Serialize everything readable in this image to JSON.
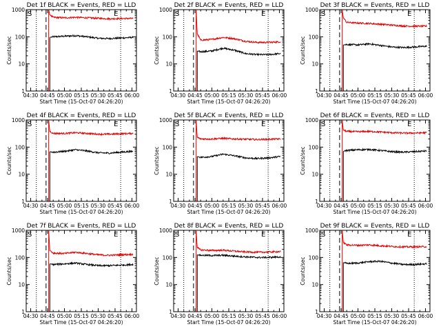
{
  "chart_data": [
    {
      "type": "line",
      "title": "Det 1f BLACK = Events, RED = LLD",
      "xlabel": "Start Time (15-Oct-07 04:26:20)",
      "ylabel": "Counts/sec",
      "yscale": "log",
      "ylim": [
        1,
        1000
      ],
      "xlim": [
        "04:26",
        "06:04"
      ],
      "x_ticks": [
        "04:30",
        "04:45",
        "05:00",
        "05:15",
        "05:30",
        "05:45",
        "06:00"
      ],
      "y_ticks": [
        "1",
        "10",
        "100",
        "1000"
      ],
      "markers": {
        "s": "S",
        "e": "E"
      },
      "series": [
        {
          "name": "BLACK = Events",
          "color": "#000000",
          "x": [
            "04:47",
            "04:50",
            "05:00",
            "05:10",
            "05:20",
            "05:30",
            "05:40",
            "05:50",
            "06:01"
          ],
          "y": [
            95,
            100,
            105,
            110,
            100,
            88,
            86,
            90,
            95
          ]
        },
        {
          "name": "RED = LLD",
          "color": "#e00000",
          "x": [
            "04:46",
            "04:47",
            "04:50",
            "05:00",
            "05:10",
            "05:20",
            "05:30",
            "05:40",
            "05:50",
            "06:01"
          ],
          "y": [
            1000,
            650,
            520,
            500,
            520,
            500,
            480,
            460,
            470,
            475
          ]
        }
      ]
    },
    {
      "type": "line",
      "title": "Det 2f BLACK = Events, RED = LLD",
      "xlabel": "Start Time (15-Oct-07 04:26:20)",
      "ylabel": "Counts/sec",
      "yscale": "log",
      "ylim": [
        1,
        1000
      ],
      "xlim": [
        "04:26",
        "06:04"
      ],
      "x_ticks": [
        "04:30",
        "04:45",
        "05:00",
        "05:15",
        "05:30",
        "05:45",
        "06:00"
      ],
      "y_ticks": [
        "1",
        "10",
        "100",
        "1000"
      ],
      "markers": {
        "s": "S",
        "e": "E"
      },
      "series": [
        {
          "name": "BLACK = Events",
          "color": "#000000",
          "x": [
            "04:47",
            "04:50",
            "05:00",
            "05:10",
            "05:20",
            "05:30",
            "05:40",
            "05:50",
            "06:01"
          ],
          "y": [
            30,
            28,
            30,
            38,
            32,
            24,
            22,
            22,
            24
          ]
        },
        {
          "name": "RED = LLD",
          "color": "#e00000",
          "x": [
            "04:46",
            "04:47",
            "04:50",
            "05:00",
            "05:10",
            "05:20",
            "05:30",
            "05:40",
            "05:50",
            "06:01"
          ],
          "y": [
            1000,
            130,
            75,
            80,
            95,
            85,
            68,
            62,
            62,
            65
          ]
        }
      ]
    },
    {
      "type": "line",
      "title": "Det 3f BLACK = Events, RED = LLD",
      "xlabel": "Start Time (15-Oct-07 04:26:20)",
      "ylabel": "Counts/sec",
      "yscale": "log",
      "ylim": [
        1,
        1000
      ],
      "xlim": [
        "04:26",
        "06:04"
      ],
      "x_ticks": [
        "04:30",
        "04:45",
        "05:00",
        "05:15",
        "05:30",
        "05:45",
        "06:00"
      ],
      "y_ticks": [
        "1",
        "10",
        "100",
        "1000"
      ],
      "markers": {
        "s": "S",
        "e": "E"
      },
      "series": [
        {
          "name": "BLACK = Events",
          "color": "#000000",
          "x": [
            "04:47",
            "04:50",
            "05:00",
            "05:10",
            "05:20",
            "05:30",
            "05:40",
            "05:50",
            "06:01"
          ],
          "y": [
            50,
            52,
            50,
            55,
            48,
            42,
            40,
            42,
            45
          ]
        },
        {
          "name": "RED = LLD",
          "color": "#e00000",
          "x": [
            "04:46",
            "04:47",
            "04:50",
            "05:00",
            "05:10",
            "05:20",
            "05:30",
            "05:40",
            "05:50",
            "06:01"
          ],
          "y": [
            1000,
            500,
            340,
            320,
            310,
            290,
            270,
            250,
            245,
            245
          ]
        }
      ]
    },
    {
      "type": "line",
      "title": "Det 4f BLACK = Events, RED = LLD",
      "xlabel": "Start Time (15-Oct-07 04:26:20)",
      "ylabel": "Counts/sec",
      "yscale": "log",
      "ylim": [
        1,
        1000
      ],
      "xlim": [
        "04:26",
        "06:04"
      ],
      "x_ticks": [
        "04:30",
        "04:45",
        "05:00",
        "05:15",
        "05:30",
        "05:45",
        "06:00"
      ],
      "y_ticks": [
        "1",
        "10",
        "100",
        "1000"
      ],
      "markers": {
        "s": "S",
        "e": "E"
      },
      "series": [
        {
          "name": "BLACK = Events",
          "color": "#000000",
          "x": [
            "04:47",
            "04:50",
            "05:00",
            "05:10",
            "05:20",
            "05:30",
            "05:40",
            "05:50",
            "06:01"
          ],
          "y": [
            68,
            65,
            70,
            80,
            72,
            62,
            60,
            65,
            70
          ]
        },
        {
          "name": "RED = LLD",
          "color": "#e00000",
          "x": [
            "04:46",
            "04:47",
            "04:50",
            "05:00",
            "05:10",
            "05:20",
            "05:30",
            "05:40",
            "05:50",
            "06:01"
          ],
          "y": [
            1000,
            380,
            320,
            320,
            340,
            320,
            300,
            300,
            310,
            320
          ]
        }
      ]
    },
    {
      "type": "line",
      "title": "Det 5f BLACK = Events, RED = LLD",
      "xlabel": "Start Time (15-Oct-07 04:26:20)",
      "ylabel": "Counts/sec",
      "yscale": "log",
      "ylim": [
        1,
        1000
      ],
      "xlim": [
        "04:26",
        "06:04"
      ],
      "x_ticks": [
        "04:30",
        "04:45",
        "05:00",
        "05:15",
        "05:30",
        "05:45",
        "06:00"
      ],
      "y_ticks": [
        "1",
        "10",
        "100",
        "1000"
      ],
      "markers": {
        "s": "S",
        "e": "E"
      },
      "series": [
        {
          "name": "BLACK = Events",
          "color": "#000000",
          "x": [
            "04:47",
            "04:50",
            "05:00",
            "05:10",
            "05:20",
            "05:30",
            "05:40",
            "05:50",
            "06:01"
          ],
          "y": [
            45,
            42,
            45,
            55,
            48,
            40,
            38,
            40,
            45
          ]
        },
        {
          "name": "RED = LLD",
          "color": "#e00000",
          "x": [
            "04:46",
            "04:47",
            "04:50",
            "05:00",
            "05:10",
            "05:20",
            "05:30",
            "05:40",
            "05:50",
            "06:01"
          ],
          "y": [
            1000,
            230,
            200,
            200,
            210,
            200,
            195,
            190,
            195,
            200
          ]
        }
      ]
    },
    {
      "type": "line",
      "title": "Det 6f BLACK = Events, RED = LLD",
      "xlabel": "Start Time (15-Oct-07 04:26:20)",
      "ylabel": "Counts/sec",
      "yscale": "log",
      "ylim": [
        1,
        1000
      ],
      "xlim": [
        "04:26",
        "06:04"
      ],
      "x_ticks": [
        "04:30",
        "04:45",
        "05:00",
        "05:15",
        "05:30",
        "05:45",
        "06:00"
      ],
      "y_ticks": [
        "1",
        "10",
        "100",
        "1000"
      ],
      "markers": {
        "s": "S",
        "e": "E"
      },
      "series": [
        {
          "name": "BLACK = Events",
          "color": "#000000",
          "x": [
            "04:47",
            "04:50",
            "05:00",
            "05:10",
            "05:20",
            "05:30",
            "05:40",
            "05:50",
            "06:01"
          ],
          "y": [
            70,
            75,
            80,
            82,
            75,
            68,
            65,
            68,
            72
          ]
        },
        {
          "name": "RED = LLD",
          "color": "#e00000",
          "x": [
            "04:46",
            "04:47",
            "04:50",
            "05:00",
            "05:10",
            "05:20",
            "05:30",
            "05:40",
            "05:50",
            "06:01"
          ],
          "y": [
            1000,
            420,
            380,
            370,
            380,
            360,
            340,
            330,
            330,
            340
          ]
        }
      ]
    },
    {
      "type": "line",
      "title": "Det 7f BLACK = Events, RED = LLD",
      "xlabel": "Start Time (15-Oct-07 04:26:20)",
      "ylabel": "Counts/sec",
      "yscale": "log",
      "ylim": [
        1,
        1000
      ],
      "xlim": [
        "04:26",
        "06:04"
      ],
      "x_ticks": [
        "04:30",
        "04:45",
        "05:00",
        "05:15",
        "05:30",
        "05:45",
        "06:00"
      ],
      "y_ticks": [
        "1",
        "10",
        "100",
        "1000"
      ],
      "markers": {
        "s": "S",
        "e": "E"
      },
      "series": [
        {
          "name": "BLACK = Events",
          "color": "#000000",
          "x": [
            "04:47",
            "04:50",
            "05:00",
            "05:10",
            "05:20",
            "05:30",
            "05:40",
            "05:50",
            "06:01"
          ],
          "y": [
            58,
            55,
            58,
            62,
            55,
            50,
            50,
            52,
            55
          ]
        },
        {
          "name": "RED = LLD",
          "color": "#e00000",
          "x": [
            "04:46",
            "04:47",
            "04:50",
            "05:00",
            "05:10",
            "05:20",
            "05:30",
            "05:40",
            "05:50",
            "06:01"
          ],
          "y": [
            1000,
            180,
            145,
            140,
            155,
            140,
            125,
            120,
            125,
            130
          ]
        }
      ]
    },
    {
      "type": "line",
      "title": "Det 8f BLACK = Events, RED = LLD",
      "xlabel": "Start Time (15-Oct-07 04:26:20)",
      "ylabel": "Counts/sec",
      "yscale": "log",
      "ylim": [
        1,
        1000
      ],
      "xlim": [
        "04:26",
        "06:04"
      ],
      "x_ticks": [
        "04:30",
        "04:45",
        "05:00",
        "05:15",
        "05:30",
        "05:45",
        "06:00"
      ],
      "y_ticks": [
        "1",
        "10",
        "100",
        "1000"
      ],
      "markers": {
        "s": "S",
        "e": "E"
      },
      "series": [
        {
          "name": "BLACK = Events",
          "color": "#000000",
          "x": [
            "04:47",
            "04:50",
            "05:00",
            "05:10",
            "05:20",
            "05:30",
            "05:40",
            "05:50",
            "06:01"
          ],
          "y": [
            125,
            120,
            118,
            120,
            112,
            105,
            100,
            100,
            105
          ]
        },
        {
          "name": "RED = LLD",
          "color": "#e00000",
          "x": [
            "04:46",
            "04:47",
            "04:50",
            "05:00",
            "05:10",
            "05:20",
            "05:30",
            "05:40",
            "05:50",
            "06:01"
          ],
          "y": [
            1000,
            230,
            190,
            180,
            185,
            170,
            160,
            155,
            158,
            165
          ]
        }
      ]
    },
    {
      "type": "line",
      "title": "Det 9f BLACK = Events, RED = LLD",
      "xlabel": "Start Time (15-Oct-07 04:26:20)",
      "ylabel": "Counts/sec",
      "yscale": "log",
      "ylim": [
        1,
        1000
      ],
      "xlim": [
        "04:26",
        "06:04"
      ],
      "x_ticks": [
        "04:30",
        "04:45",
        "05:00",
        "05:15",
        "05:30",
        "05:45",
        "06:00"
      ],
      "y_ticks": [
        "1",
        "10",
        "100",
        "1000"
      ],
      "markers": {
        "s": "S",
        "e": "E"
      },
      "series": [
        {
          "name": "BLACK = Events",
          "color": "#000000",
          "x": [
            "04:47",
            "04:50",
            "05:00",
            "05:10",
            "05:20",
            "05:30",
            "05:40",
            "05:50",
            "06:01"
          ],
          "y": [
            65,
            60,
            62,
            70,
            72,
            62,
            55,
            55,
            58
          ]
        },
        {
          "name": "RED = LLD",
          "color": "#e00000",
          "x": [
            "04:46",
            "04:47",
            "04:50",
            "05:00",
            "05:10",
            "05:20",
            "05:30",
            "05:40",
            "05:50",
            "06:01"
          ],
          "y": [
            1000,
            360,
            290,
            280,
            290,
            270,
            255,
            245,
            245,
            250
          ]
        }
      ]
    }
  ],
  "colors": {
    "events": "#000000",
    "lld": "#e00000",
    "background": "#ffffff"
  }
}
